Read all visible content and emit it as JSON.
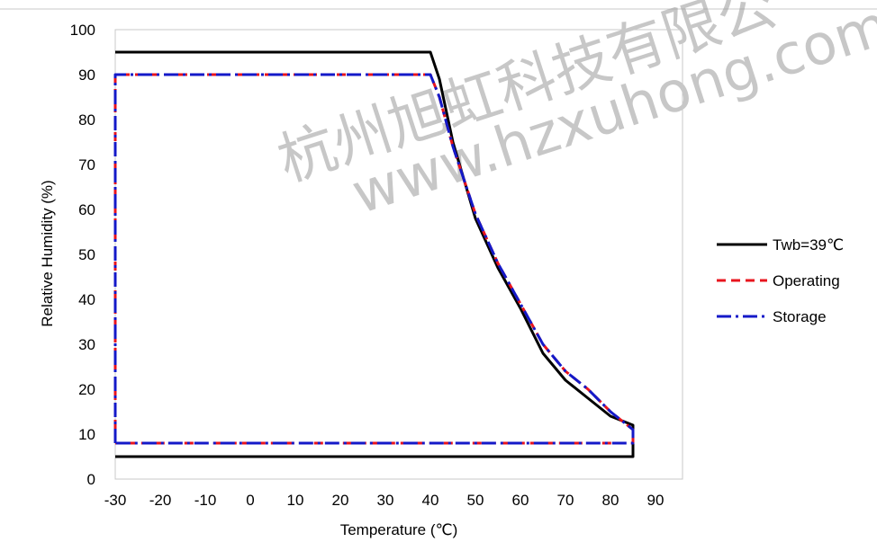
{
  "chart_data": {
    "type": "line",
    "xlabel": "Temperature (℃)",
    "ylabel": "Relative Humidity (%)",
    "xlim": [
      -30,
      95
    ],
    "ylim": [
      0,
      100
    ],
    "x_ticks": [
      -30,
      -20,
      -10,
      0,
      10,
      20,
      30,
      40,
      50,
      60,
      70,
      80,
      90
    ],
    "y_ticks": [
      0,
      10,
      20,
      30,
      40,
      50,
      60,
      70,
      80,
      90,
      100
    ],
    "grid": false,
    "legend_position": "right",
    "series": [
      {
        "name": "Twb=39℃",
        "color": "#000000",
        "style": "solid",
        "points": [
          [
            -30,
            95
          ],
          [
            40,
            95
          ],
          [
            42,
            89
          ],
          [
            45,
            75
          ],
          [
            50,
            58
          ],
          [
            55,
            47
          ],
          [
            60,
            38
          ],
          [
            65,
            28
          ],
          [
            70,
            22
          ],
          [
            75,
            18
          ],
          [
            80,
            14
          ],
          [
            85,
            12
          ],
          [
            85,
            5
          ],
          [
            -30,
            5
          ]
        ]
      },
      {
        "name": "Operating",
        "color": "#e8141e",
        "style": "dashed",
        "points": [
          [
            -30,
            8
          ],
          [
            -30,
            90
          ],
          [
            40,
            90
          ],
          [
            42,
            85
          ],
          [
            45,
            74
          ],
          [
            50,
            59
          ],
          [
            55,
            48
          ],
          [
            60,
            39
          ],
          [
            65,
            30
          ],
          [
            70,
            24
          ],
          [
            75,
            20
          ],
          [
            80,
            15
          ],
          [
            85,
            11
          ],
          [
            85,
            8
          ],
          [
            -30,
            8
          ]
        ]
      },
      {
        "name": "Storage",
        "color": "#1419c8",
        "style": "dashdot",
        "points": [
          [
            -30,
            8
          ],
          [
            -30,
            90
          ],
          [
            40,
            90
          ],
          [
            42,
            85
          ],
          [
            45,
            74
          ],
          [
            50,
            59
          ],
          [
            55,
            48
          ],
          [
            60,
            39
          ],
          [
            65,
            30
          ],
          [
            70,
            24
          ],
          [
            75,
            20
          ],
          [
            80,
            15
          ],
          [
            85,
            11
          ],
          [
            85,
            8
          ],
          [
            -30,
            8
          ]
        ]
      }
    ]
  },
  "watermark": {
    "line1": "杭州旭虹科技有限公",
    "line2": "www.hzxuhong.com"
  }
}
